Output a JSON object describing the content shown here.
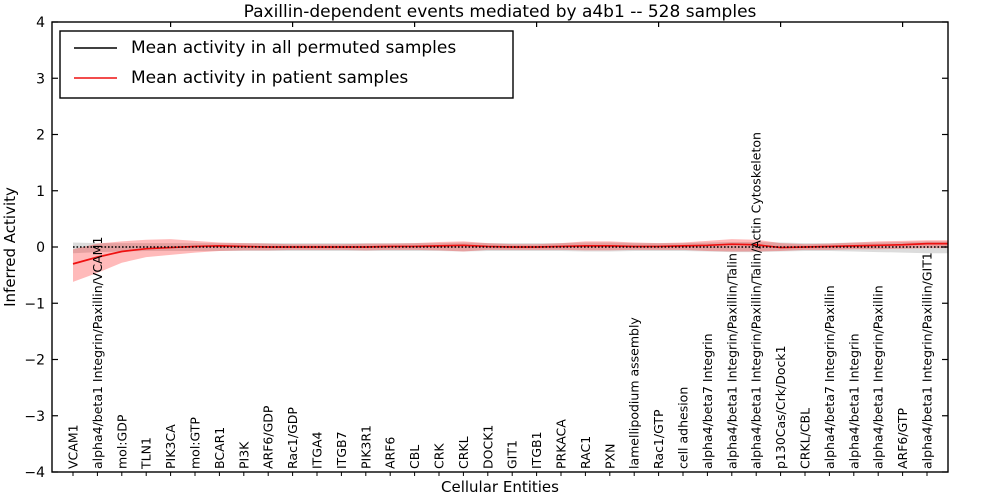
{
  "chart_data": {
    "type": "line",
    "title": "Paxillin-dependent events mediated by a4b1 -- 528 samples",
    "xlabel": "Cellular Entities",
    "ylabel": "Inferred Activity",
    "ylim": [
      -4,
      4
    ],
    "yticks": [
      -4,
      -3,
      -2,
      -1,
      0,
      1,
      2,
      3,
      4
    ],
    "grid": false,
    "legend_position": "upper left",
    "categories": [
      "VCAM1",
      "alpha4/beta1 Integrin/Paxillin/VCAM1",
      "mol:GDP",
      "TLN1",
      "PIK3CA",
      "mol:GTP",
      "BCAR1",
      "PI3K",
      "ARF6/GDP",
      "Rac1/GDP",
      "ITGA4",
      "ITGB7",
      "PIK3R1",
      "ARF6",
      "CBL",
      "CRK",
      "CRKL",
      "DOCK1",
      "GIT1",
      "ITGB1",
      "PRKACA",
      "RAC1",
      "PXN",
      "lamellipodium assembly",
      "Rac1/GTP",
      "cell adhesion",
      "alpha4/beta7 Integrin",
      "alpha4/beta1 Integrin/Paxillin/Talin",
      "alpha4/beta1 Integrin/Paxillin/Talin/Actin Cytoskeleton",
      "p130Cas/Crk/Dock1",
      "CRKL/CBL",
      "alpha4/beta7 Integrin/Paxillin",
      "alpha4/beta1 Integrin",
      "alpha4/beta1 Integrin/Paxillin",
      "ARF6/GTP",
      "alpha4/beta1 Integrin/Paxillin/GIT1"
    ],
    "series": [
      {
        "name": "Mean activity in all permuted samples",
        "color": "#000000",
        "line_style": "dotted",
        "band_color": "rgba(128,128,128,0.28)",
        "values": [
          0,
          0,
          0,
          0,
          0,
          0,
          0,
          0,
          0,
          0,
          0,
          0,
          0,
          0,
          0,
          0,
          0,
          0,
          0,
          0,
          0,
          0,
          0,
          0,
          0,
          0,
          0,
          0,
          0,
          0,
          0,
          0,
          0,
          0,
          0,
          0
        ],
        "band_upper": [
          0.08,
          0.07,
          0.07,
          0.07,
          0.07,
          0.07,
          0.07,
          0.07,
          0.07,
          0.07,
          0.07,
          0.07,
          0.07,
          0.07,
          0.07,
          0.07,
          0.08,
          0.07,
          0.07,
          0.07,
          0.07,
          0.08,
          0.08,
          0.07,
          0.07,
          0.07,
          0.08,
          0.09,
          0.09,
          0.08,
          0.07,
          0.07,
          0.08,
          0.08,
          0.09,
          0.1
        ],
        "band_lower": [
          -0.11,
          -0.09,
          -0.08,
          -0.07,
          -0.07,
          -0.07,
          -0.07,
          -0.07,
          -0.07,
          -0.07,
          -0.07,
          -0.07,
          -0.07,
          -0.07,
          -0.07,
          -0.07,
          -0.08,
          -0.07,
          -0.07,
          -0.07,
          -0.07,
          -0.08,
          -0.08,
          -0.07,
          -0.07,
          -0.07,
          -0.08,
          -0.09,
          -0.09,
          -0.08,
          -0.07,
          -0.07,
          -0.08,
          -0.09,
          -0.1,
          -0.11
        ]
      },
      {
        "name": "Mean activity in patient samples",
        "color": "#ee1111",
        "line_style": "solid",
        "band_color": "rgba(255,0,0,0.27)",
        "values": [
          -0.3,
          -0.18,
          -0.08,
          -0.03,
          -0.01,
          0.01,
          0.02,
          0.01,
          0.0,
          0.0,
          0.0,
          0.0,
          0.0,
          0.01,
          0.01,
          0.02,
          0.03,
          0.01,
          0.0,
          0.0,
          0.01,
          0.02,
          0.02,
          0.01,
          0.01,
          0.02,
          0.03,
          0.05,
          0.04,
          -0.01,
          0.0,
          0.01,
          0.02,
          0.03,
          0.04,
          0.06
        ],
        "band_upper": [
          -0.04,
          0.06,
          0.1,
          0.13,
          0.14,
          0.11,
          0.08,
          0.07,
          0.06,
          0.05,
          0.05,
          0.05,
          0.06,
          0.06,
          0.07,
          0.09,
          0.1,
          0.07,
          0.05,
          0.05,
          0.07,
          0.1,
          0.1,
          0.08,
          0.07,
          0.08,
          0.11,
          0.14,
          0.13,
          0.07,
          0.05,
          0.06,
          0.08,
          0.1,
          0.11,
          0.12
        ],
        "band_lower": [
          -0.62,
          -0.46,
          -0.28,
          -0.18,
          -0.14,
          -0.1,
          -0.07,
          -0.06,
          -0.06,
          -0.05,
          -0.05,
          -0.05,
          -0.06,
          -0.05,
          -0.05,
          -0.06,
          -0.08,
          -0.05,
          -0.05,
          -0.05,
          -0.05,
          -0.06,
          -0.06,
          -0.05,
          -0.05,
          -0.05,
          -0.07,
          -0.08,
          -0.08,
          -0.07,
          -0.05,
          -0.05,
          -0.04,
          -0.04,
          -0.03,
          -0.02
        ]
      }
    ]
  }
}
